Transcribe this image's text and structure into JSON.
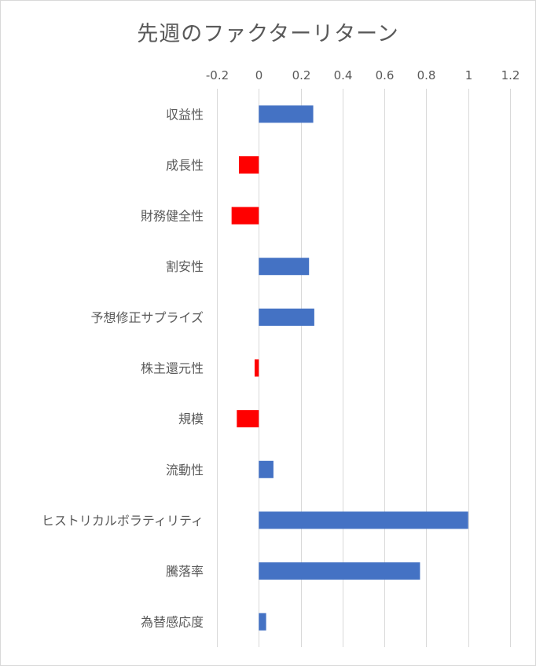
{
  "chart_data": {
    "type": "bar",
    "orientation": "horizontal",
    "title": "先週のファクターリターン",
    "xlabel": "",
    "ylabel": "",
    "categories": [
      "収益性",
      "成長性",
      "財務健全性",
      "割安性",
      "予想修正サプライズ",
      "株主還元性",
      "規模",
      "流動性",
      "ヒストリカルボラティリティ",
      "騰落率",
      "為替感応度"
    ],
    "values": [
      0.26,
      -0.095,
      -0.13,
      0.24,
      0.265,
      -0.02,
      -0.105,
      0.07,
      1.0,
      0.77,
      0.035
    ],
    "xlim": [
      -0.2,
      1.2
    ],
    "ticks": [
      "-0.2",
      "0",
      "0.2",
      "0.4",
      "0.6",
      "0.8",
      "1",
      "1.2"
    ],
    "tick_values": [
      -0.2,
      0,
      0.2,
      0.4,
      0.6,
      0.8,
      1.0,
      1.2
    ],
    "grid": true,
    "axis_position": "top",
    "colors": {
      "positive": "#4472C4",
      "negative": "#FF0000",
      "grid": "#d9d9d9",
      "text": "#595959"
    }
  }
}
